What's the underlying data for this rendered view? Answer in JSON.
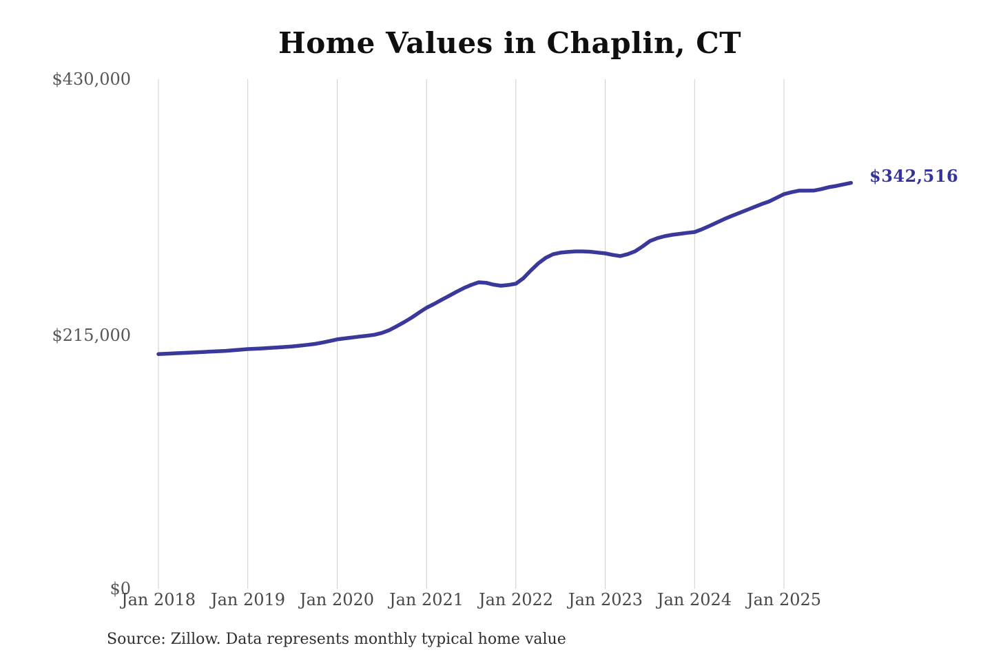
{
  "title": "Home Values in Chaplin, CT",
  "end_label": "$342,516",
  "source_note": "Source: Zillow. Data represents monthly typical home value",
  "colors": {
    "line": "#3a389b",
    "grid": "#cccccc",
    "title": "#0f0f0f",
    "axis_labels": "#565656",
    "end_label": "#34339c",
    "source": "#2e2e2e",
    "background": "#ffffff"
  },
  "y_axis": {
    "ticks": [
      "$430,000",
      "$215,000",
      "$0"
    ]
  },
  "x_axis": {
    "ticks": [
      "Jan 2018",
      "Jan 2019",
      "Jan 2020",
      "Jan 2021",
      "Jan 2022",
      "Jan 2023",
      "Jan 2024",
      "Jan 2025"
    ]
  },
  "chart_data": {
    "type": "line",
    "title": "Home Values in Chaplin, CT",
    "xlabel": "",
    "ylabel": "",
    "ylim": [
      0,
      430000
    ],
    "y_tick_values": [
      0,
      215000,
      430000
    ],
    "grid": "vertical yearly gridlines only",
    "legend": "none",
    "series": [
      {
        "name": "Monthly typical home value (USD)",
        "color": "#3a389b",
        "dates": [
          "2018-01",
          "2018-02",
          "2018-03",
          "2018-04",
          "2018-05",
          "2018-06",
          "2018-07",
          "2018-08",
          "2018-09",
          "2018-10",
          "2018-11",
          "2018-12",
          "2019-01",
          "2019-02",
          "2019-03",
          "2019-04",
          "2019-05",
          "2019-06",
          "2019-07",
          "2019-08",
          "2019-09",
          "2019-10",
          "2019-11",
          "2019-12",
          "2020-01",
          "2020-02",
          "2020-03",
          "2020-04",
          "2020-05",
          "2020-06",
          "2020-07",
          "2020-08",
          "2020-09",
          "2020-10",
          "2020-11",
          "2020-12",
          "2021-01",
          "2021-02",
          "2021-03",
          "2021-04",
          "2021-05",
          "2021-06",
          "2021-07",
          "2021-08",
          "2021-09",
          "2021-10",
          "2021-11",
          "2021-12",
          "2022-01",
          "2022-02",
          "2022-03",
          "2022-04",
          "2022-05",
          "2022-06",
          "2022-07",
          "2022-08",
          "2022-09",
          "2022-10",
          "2022-11",
          "2022-12",
          "2023-01",
          "2023-02",
          "2023-03",
          "2023-04",
          "2023-05",
          "2023-06",
          "2023-07",
          "2023-08",
          "2023-09",
          "2023-10",
          "2023-11",
          "2023-12",
          "2024-01",
          "2024-02",
          "2024-03",
          "2024-04",
          "2024-05",
          "2024-06",
          "2024-07",
          "2024-08",
          "2024-09",
          "2024-10",
          "2024-11",
          "2024-12",
          "2025-01",
          "2025-02",
          "2025-03",
          "2025-04",
          "2025-05",
          "2025-06",
          "2025-07",
          "2025-08",
          "2025-09",
          "2025-10"
        ],
        "values": [
          198000,
          198300,
          198600,
          198900,
          199200,
          199500,
          199800,
          200100,
          200400,
          200700,
          201200,
          201700,
          202200,
          202500,
          202800,
          203200,
          203600,
          204000,
          204500,
          205100,
          205800,
          206600,
          207700,
          209000,
          210400,
          211200,
          212000,
          212800,
          213500,
          214300,
          215800,
          218200,
          221500,
          225000,
          228800,
          233000,
          237100,
          240300,
          243700,
          247100,
          250500,
          253700,
          256400,
          258600,
          258200,
          256600,
          255700,
          256300,
          257400,
          262000,
          268500,
          274500,
          279200,
          282300,
          283600,
          284200,
          284700,
          284700,
          284400,
          283700,
          283000,
          281700,
          280700,
          282300,
          284700,
          288800,
          293400,
          295800,
          297500,
          298700,
          299500,
          300300,
          301000,
          303400,
          306200,
          309100,
          312000,
          314600,
          317100,
          319600,
          322100,
          324600,
          326800,
          329900,
          333000,
          334600,
          335900,
          335900,
          336000,
          337200,
          338800,
          339900,
          341200,
          342516
        ]
      }
    ],
    "final_point": {
      "date": "2025-10",
      "value": 342516,
      "label": "$342,516"
    }
  }
}
